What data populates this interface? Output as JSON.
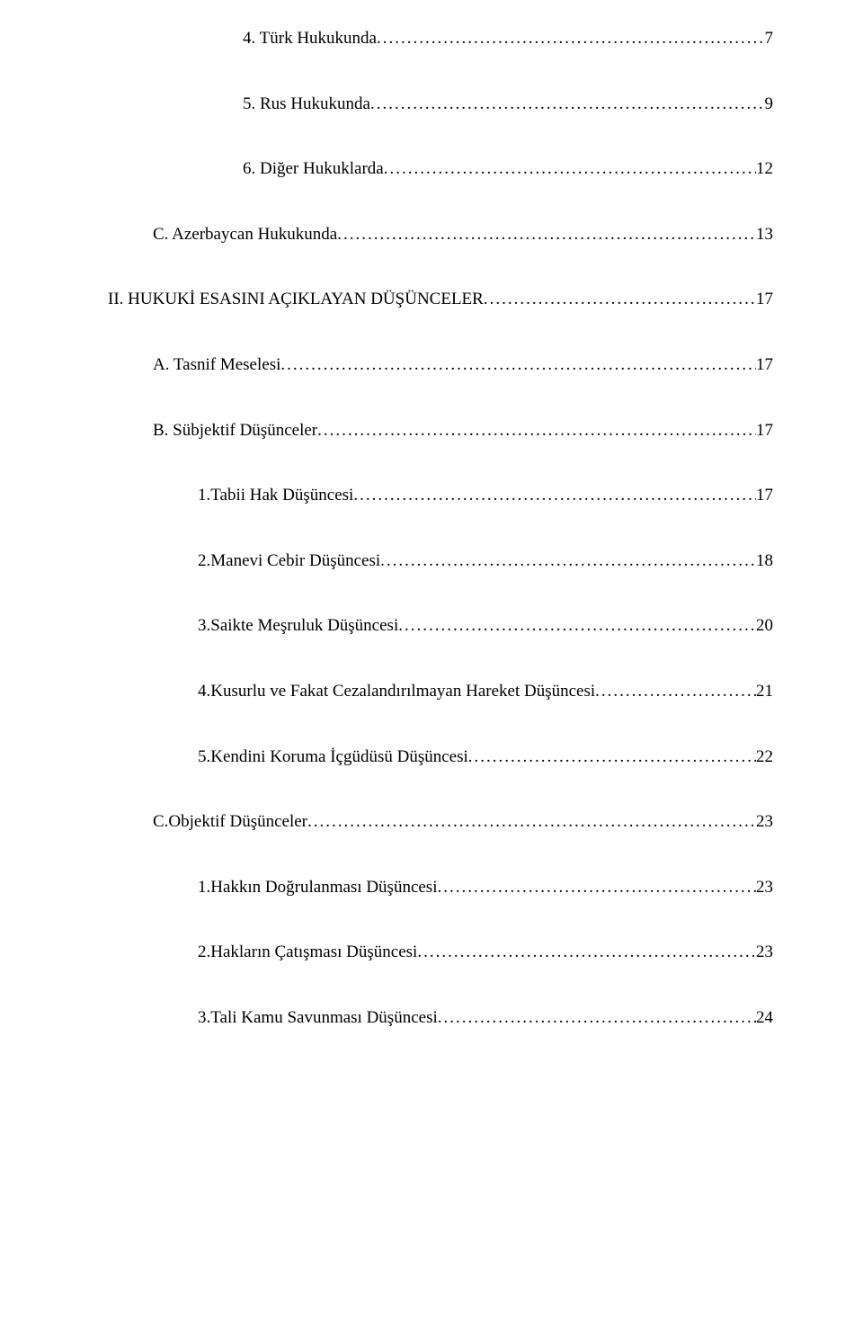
{
  "toc": [
    {
      "indent": 3,
      "label": "4. Türk Hukukunda",
      "page": "7"
    },
    {
      "indent": 3,
      "label": "5. Rus Hukukunda",
      "page": "9"
    },
    {
      "indent": 3,
      "label": "6. Diğer Hukuklarda",
      "page": "12"
    },
    {
      "indent": 1,
      "label": "C. Azerbaycan Hukukunda",
      "page": "13"
    },
    {
      "indent": 0,
      "label": "II. HUKUKİ ESASINI AÇIKLAYAN DÜŞÜNCELER",
      "page": "17"
    },
    {
      "indent": 1,
      "label": "A. Tasnif Meselesi",
      "page": "17"
    },
    {
      "indent": 1,
      "label": "B. Sübjektif Düşünceler",
      "page": "17"
    },
    {
      "indent": 2,
      "label": "1.Tabii Hak Düşüncesi",
      "page": "17"
    },
    {
      "indent": 2,
      "label": "2.Manevi Cebir Düşüncesi",
      "page": "18"
    },
    {
      "indent": 2,
      "label": "3.Saikte Meşruluk Düşüncesi",
      "page": "20"
    },
    {
      "indent": 2,
      "label": "4.Kusurlu ve Fakat Cezalandırılmayan Hareket Düşüncesi",
      "page": "21"
    },
    {
      "indent": 2,
      "label": "5.Kendini Koruma İçgüdüsü Düşüncesi",
      "page": "22"
    },
    {
      "indent": 1,
      "label": "C.Objektif Düşünceler",
      "page": "23"
    },
    {
      "indent": 2,
      "label": "1.Hakkın Doğrulanması Düşüncesi",
      "page": "23"
    },
    {
      "indent": 2,
      "label": "2.Hakların Çatışması Düşüncesi",
      "page": "23"
    },
    {
      "indent": 2,
      "label": "3.Tali Kamu Savunması Düşüncesi",
      "page": "24"
    }
  ],
  "style": {
    "fontsize": 19,
    "color": "#000000",
    "background": "#ffffff"
  }
}
